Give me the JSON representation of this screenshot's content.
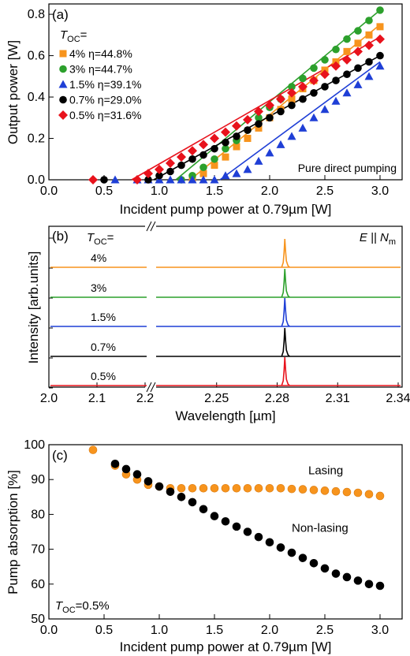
{
  "chart_data": [
    {
      "panel": "(a)",
      "type": "scatter",
      "xlabel": "Incident pump power at 0.79µm [W]",
      "ylabel": "Output power [W]",
      "xlim": [
        0.0,
        3.2
      ],
      "ylim": [
        0.0,
        0.85
      ],
      "xticks": [
        "0.0",
        "0.5",
        "1.0",
        "1.5",
        "2.0",
        "2.5",
        "3.0"
      ],
      "yticks": [
        "0.0",
        "0.2",
        "0.4",
        "0.6",
        "0.8"
      ],
      "legend_title": "T",
      "legend_title_sub": "OC",
      "legend_title_suffix": "=",
      "legend_position": "top-left",
      "annotation": "Pure direct pumping",
      "series": [
        {
          "name": "4% η=44.8%",
          "marker": "square",
          "color": "#f7941d",
          "x": [
            1.3,
            1.4,
            1.5,
            1.6,
            1.7,
            1.8,
            1.9,
            2.0,
            2.1,
            2.2,
            2.3,
            2.4,
            2.5,
            2.6,
            2.7,
            2.8,
            2.9,
            3.0
          ],
          "y": [
            0.0,
            0.03,
            0.07,
            0.11,
            0.16,
            0.2,
            0.25,
            0.3,
            0.34,
            0.39,
            0.44,
            0.48,
            0.53,
            0.57,
            0.62,
            0.66,
            0.7,
            0.74
          ],
          "fit_x": [
            1.28,
            3.0
          ],
          "fit_y": [
            0.0,
            0.75
          ]
        },
        {
          "name": "3% η=44.7%",
          "marker": "circle",
          "color": "#2ca02c",
          "x": [
            1.2,
            1.3,
            1.4,
            1.5,
            1.6,
            1.7,
            1.8,
            1.9,
            2.0,
            2.1,
            2.2,
            2.3,
            2.4,
            2.5,
            2.6,
            2.7,
            2.8,
            2.9,
            3.0
          ],
          "y": [
            0.0,
            0.02,
            0.06,
            0.1,
            0.15,
            0.19,
            0.24,
            0.3,
            0.35,
            0.39,
            0.45,
            0.49,
            0.54,
            0.58,
            0.63,
            0.68,
            0.72,
            0.77,
            0.82
          ],
          "fit_x": [
            1.15,
            3.0
          ],
          "fit_y": [
            0.0,
            0.82
          ]
        },
        {
          "name": "1.5% η=39.1%",
          "marker": "triangle",
          "color": "#1f3fd6",
          "x": [
            0.6,
            0.8,
            0.9,
            1.0,
            1.1,
            1.2,
            1.3,
            1.4,
            1.5,
            1.6,
            1.7,
            1.8,
            1.9,
            2.0,
            2.1,
            2.2,
            2.3,
            2.4,
            2.5,
            2.6,
            2.7,
            2.8,
            2.9,
            3.0
          ],
          "y": [
            0.0,
            0.0,
            0.0,
            0.0,
            0.0,
            0.0,
            0.0,
            0.0,
            0.0,
            0.02,
            0.03,
            0.05,
            0.09,
            0.13,
            0.17,
            0.21,
            0.25,
            0.3,
            0.34,
            0.38,
            0.42,
            0.46,
            0.5,
            0.55
          ],
          "fit_x": [
            1.55,
            3.0
          ],
          "fit_y": [
            0.0,
            0.57
          ]
        },
        {
          "name": "0.7% η=29.0%",
          "marker": "circle",
          "color": "#000000",
          "x": [
            0.5,
            0.9,
            1.0,
            1.1,
            1.2,
            1.3,
            1.4,
            1.5,
            1.6,
            1.7,
            1.8,
            1.9,
            2.0,
            2.1,
            2.2,
            2.3,
            2.4,
            2.5,
            2.6,
            2.7,
            2.8,
            2.9,
            3.0
          ],
          "y": [
            0.0,
            0.0,
            0.02,
            0.04,
            0.07,
            0.1,
            0.12,
            0.15,
            0.18,
            0.21,
            0.24,
            0.27,
            0.3,
            0.33,
            0.36,
            0.39,
            0.42,
            0.45,
            0.48,
            0.51,
            0.54,
            0.57,
            0.6
          ],
          "fit_x": [
            0.95,
            3.0
          ],
          "fit_y": [
            0.0,
            0.6
          ]
        },
        {
          "name": "0.5% η=31.6%",
          "marker": "diamond",
          "color": "#e8121c",
          "x": [
            0.4,
            0.8,
            0.9,
            1.0,
            1.1,
            1.2,
            1.3,
            1.4,
            1.5,
            1.6,
            1.7,
            1.8,
            1.9,
            2.0,
            2.1,
            2.2,
            2.3,
            2.4,
            2.5,
            2.6,
            2.7,
            2.8,
            2.9,
            3.0
          ],
          "y": [
            0.0,
            0.0,
            0.03,
            0.05,
            0.08,
            0.11,
            0.14,
            0.17,
            0.2,
            0.23,
            0.26,
            0.29,
            0.33,
            0.36,
            0.39,
            0.42,
            0.45,
            0.48,
            0.51,
            0.55,
            0.58,
            0.62,
            0.65,
            0.68
          ],
          "fit_x": [
            0.75,
            3.0
          ],
          "fit_y": [
            0.0,
            0.69
          ]
        }
      ]
    },
    {
      "panel": "(b)",
      "type": "line",
      "xlabel": "Wavelength [µm]",
      "ylabel": "Intensity [arb.units]",
      "xticks": [
        "2.0",
        "2.1",
        "2.2",
        "2.25",
        "2.28",
        "2.31",
        "2.34"
      ],
      "broken_axis": {
        "left_range": [
          2.0,
          2.2
        ],
        "right_range": [
          2.22,
          2.345
        ]
      },
      "polarization_label": "E || N",
      "polarization_sub": "m",
      "legend_title": "T",
      "legend_title_sub": "OC",
      "legend_title_suffix": "=",
      "peak_wavelength": 2.2838,
      "series": [
        {
          "name": "4%",
          "color": "#f7941d"
        },
        {
          "name": "3%",
          "color": "#2ca02c"
        },
        {
          "name": "1.5%",
          "color": "#1f3fd6"
        },
        {
          "name": "0.7%",
          "color": "#000000"
        },
        {
          "name": "0.5%",
          "color": "#e8121c"
        }
      ]
    },
    {
      "panel": "(c)",
      "type": "scatter",
      "xlabel": "Incident pump power at 0.79µm [W]",
      "ylabel": "Pump absorption [%]",
      "xlim": [
        0.0,
        3.2
      ],
      "ylim": [
        50,
        100
      ],
      "xticks": [
        "0.0",
        "0.5",
        "1.0",
        "1.5",
        "2.0",
        "2.5",
        "3.0"
      ],
      "yticks": [
        "50",
        "60",
        "70",
        "80",
        "90",
        "100"
      ],
      "note_prefix": "T",
      "note_sub": "OC",
      "note_suffix": "=0.5%",
      "series": [
        {
          "name": "Lasing",
          "color": "#f7941d",
          "label_x": 2.35,
          "label_y": 91.5,
          "x": [
            0.4,
            0.6,
            0.7,
            0.8,
            0.9,
            1.0,
            1.1,
            1.2,
            1.3,
            1.4,
            1.5,
            1.6,
            1.7,
            1.8,
            1.9,
            2.0,
            2.1,
            2.2,
            2.3,
            2.4,
            2.5,
            2.6,
            2.7,
            2.8,
            2.9,
            3.0
          ],
          "y": [
            98.5,
            94.0,
            91.5,
            90.0,
            88.5,
            88.0,
            87.5,
            87.5,
            87.5,
            87.5,
            87.5,
            87.5,
            87.5,
            87.5,
            87.5,
            87.5,
            87.5,
            87.3,
            87.2,
            87.0,
            86.8,
            86.6,
            86.4,
            86.2,
            85.8,
            85.3
          ]
        },
        {
          "name": "Non-lasing",
          "color": "#000000",
          "label_x": 2.2,
          "label_y": 75.0,
          "x": [
            0.6,
            0.7,
            0.8,
            0.9,
            1.0,
            1.1,
            1.2,
            1.3,
            1.4,
            1.5,
            1.6,
            1.7,
            1.8,
            1.9,
            2.0,
            2.1,
            2.2,
            2.3,
            2.4,
            2.5,
            2.6,
            2.7,
            2.8,
            2.9,
            3.0
          ],
          "y": [
            94.5,
            93.0,
            91.5,
            89.5,
            88.0,
            86.5,
            85.0,
            83.5,
            81.5,
            79.5,
            78.0,
            76.5,
            75.0,
            73.5,
            72.0,
            70.5,
            69.0,
            67.5,
            66.0,
            64.5,
            63.0,
            62.0,
            61.0,
            60.0,
            59.5
          ]
        }
      ]
    }
  ]
}
